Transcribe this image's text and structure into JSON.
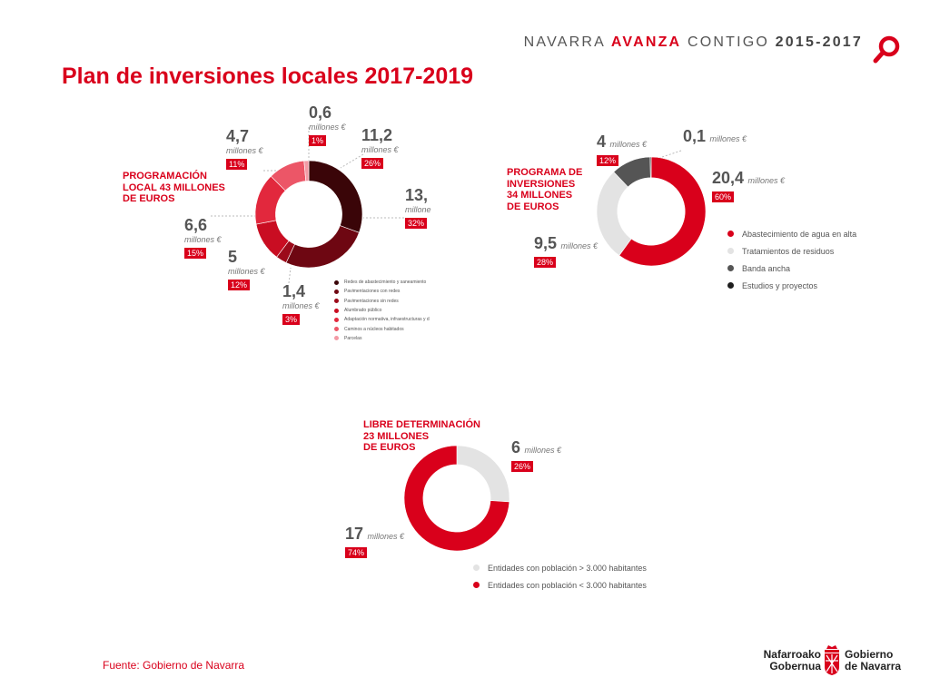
{
  "header": {
    "tag_pre": "NAVARRA ",
    "tag_bold": "AVANZA",
    "tag_mid": " CONTIGO ",
    "tag_years": "2015-2017",
    "title": "Plan de inversiones locales 2017-2019"
  },
  "footer": {
    "source": "Fuente: Gobierno de Navarra",
    "logo_line1_left": "Nafarroako",
    "logo_line2_left": "Gobernua",
    "logo_line1_right": "Gobierno",
    "logo_line2_right": "de Navarra"
  },
  "chart_data": [
    {
      "type": "pie",
      "title_lines": [
        "PROGRAMACIÓN",
        "LOCAL 43 MILLONES",
        "DE EUROS"
      ],
      "unit": "millones €",
      "slices": [
        {
          "label": "Redes de abastecimiento y saneamiento",
          "value": 13,
          "value_text": "13,",
          "unit_text": "millone",
          "pct": "32%",
          "color": "#3a0508"
        },
        {
          "label": "Pavimentaciones con redes",
          "value": 11.2,
          "value_text": "11,2",
          "pct": "26%",
          "color": "#6e0712"
        },
        {
          "label": "Pavimentaciones sin redes",
          "value": 1.4,
          "value_text": "1,4",
          "pct": "3%",
          "color": "#9c0a1a"
        },
        {
          "label": "Alumbrado público",
          "value": 5,
          "value_text": "5",
          "pct": "12%",
          "color": "#c90d22"
        },
        {
          "label": "Adaptación normativa, infraestructuras y d",
          "value": 6.6,
          "value_text": "6,6",
          "pct": "15%",
          "color": "#e2283d"
        },
        {
          "label": "Caminos a núcleos habitados",
          "value": 4.7,
          "value_text": "4,7",
          "pct": "11%",
          "color": "#ec5667"
        },
        {
          "label": "Parcelas",
          "value": 0.6,
          "value_text": "0,6",
          "pct": "1%",
          "color": "#f39aa5"
        }
      ]
    },
    {
      "type": "pie",
      "title_lines": [
        "PROGRAMA DE",
        "INVERSIONES",
        "34 MILLONES",
        "DE EUROS"
      ],
      "unit": "millones €",
      "slices": [
        {
          "label": "Abastecimiento de agua en alta",
          "value": 20.4,
          "value_text": "20,4",
          "pct": "60%",
          "color": "#d9001b"
        },
        {
          "label": "Tratamientos de residuos",
          "value": 9.5,
          "value_text": "9,5",
          "pct": "28%",
          "color": "#e3e3e3"
        },
        {
          "label": "Banda ancha",
          "value": 4,
          "value_text": "4",
          "pct": "12%",
          "color": "#555555"
        },
        {
          "label": "Estudios y proyectos",
          "value": 0.1,
          "value_text": "0,1",
          "pct": "",
          "color": "#1e1e1e"
        }
      ]
    },
    {
      "type": "pie",
      "title_lines": [
        "LIBRE DETERMINACIÓN",
        "23 MILLONES",
        "DE EUROS"
      ],
      "unit": "millones €",
      "slices": [
        {
          "label": "Entidades con población > 3.000 habitantes",
          "value": 6,
          "value_text": "6",
          "pct": "26%",
          "color": "#e3e3e3"
        },
        {
          "label": "Entidades con población < 3.000 habitantes",
          "value": 17,
          "value_text": "17",
          "pct": "74%",
          "color": "#d9001b"
        }
      ]
    }
  ]
}
